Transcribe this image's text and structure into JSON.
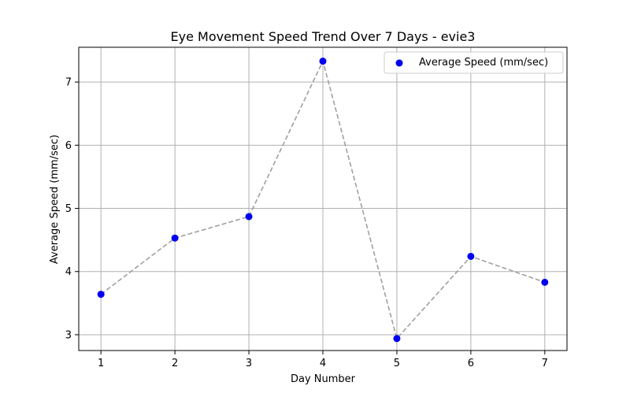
{
  "chart_data": {
    "type": "scatter",
    "title": "Eye Movement Speed Trend Over 7 Days - evie3",
    "xlabel": "Day Number",
    "ylabel": "Average Speed (mm/sec)",
    "xlim": [
      0.7,
      7.3
    ],
    "ylim": [
      2.75,
      7.55
    ],
    "x_ticks": [
      1,
      2,
      3,
      4,
      5,
      6,
      7
    ],
    "y_ticks": [
      3,
      4,
      5,
      6,
      7
    ],
    "grid": true,
    "legend_position": "top-right",
    "series": [
      {
        "name": "Average Speed (mm/sec)",
        "marker": "circle",
        "color": "#0000ee",
        "connector": "dashed",
        "connector_color": "#a0a0a0",
        "x": [
          1,
          2,
          3,
          4,
          5,
          6,
          7
        ],
        "y": [
          3.64,
          4.53,
          4.87,
          7.33,
          2.94,
          4.24,
          3.83
        ]
      }
    ]
  }
}
